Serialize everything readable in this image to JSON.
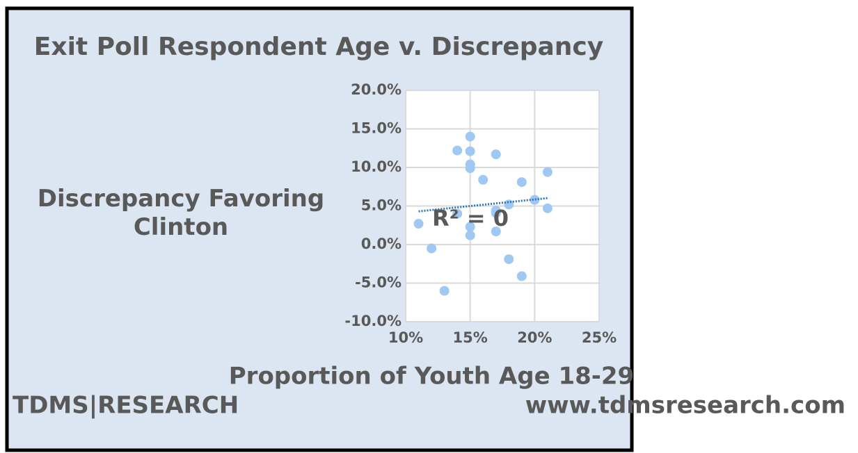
{
  "chart_data": {
    "type": "scatter",
    "title": "Exit Poll Respondent Age v. Discrepancy",
    "xlabel": "Proportion of Youth Age 18-29",
    "ylabel": "Discrepancy Favoring Clinton",
    "annotation": "R² = 0",
    "x": [
      11,
      12,
      13,
      14,
      14,
      15,
      15,
      15,
      15,
      15,
      15,
      16,
      17,
      17,
      17,
      17,
      18,
      18,
      19,
      19,
      20,
      21,
      21
    ],
    "values": [
      2.7,
      -0.5,
      -6.0,
      12.2,
      4.0,
      14.0,
      12.1,
      10.4,
      9.9,
      2.3,
      1.2,
      8.4,
      11.7,
      4.4,
      4.1,
      1.7,
      5.2,
      -1.9,
      8.1,
      -4.1,
      5.8,
      9.4,
      4.7
    ],
    "color": "#9fc8f3",
    "trendline": true,
    "trendline_color": "#2e75b6",
    "grid": true,
    "xlim": [
      10,
      25
    ],
    "xticks": [
      {
        "value": 10,
        "label": "10%"
      },
      {
        "value": 15,
        "label": "15%"
      },
      {
        "value": 20,
        "label": "20%"
      },
      {
        "value": 25,
        "label": "25%"
      }
    ],
    "ylim": [
      -10,
      20
    ],
    "yticks": [
      {
        "value": -10,
        "label": "-10.0%"
      },
      {
        "value": -5,
        "label": "-5.0%"
      },
      {
        "value": 0,
        "label": "0.0%"
      },
      {
        "value": 5,
        "label": "5.0%"
      },
      {
        "value": 10,
        "label": "10.0%"
      },
      {
        "value": 15,
        "label": "15.0%"
      },
      {
        "value": 20,
        "label": "20.0%"
      }
    ]
  },
  "footer": {
    "left": "TDMS|RESEARCH",
    "right": "www.tdmsresearch.com"
  }
}
